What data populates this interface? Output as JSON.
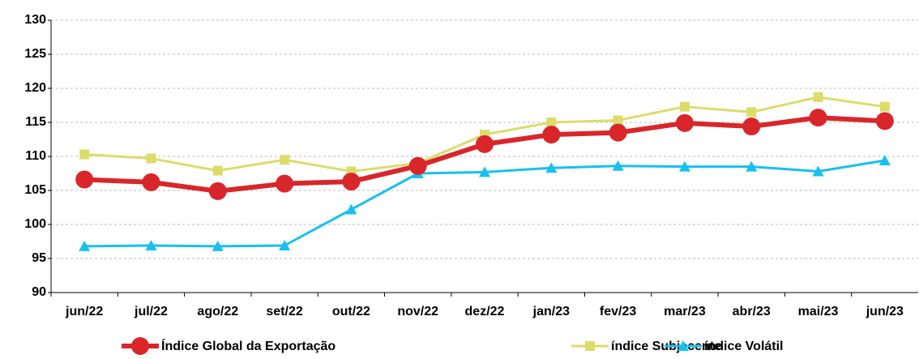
{
  "chart_data": {
    "type": "line",
    "categories": [
      "jun/22",
      "jul/22",
      "ago/22",
      "set/22",
      "out/22",
      "nov/22",
      "dez/22",
      "jan/23",
      "fev/23",
      "mar/23",
      "abr/23",
      "mai/23",
      "jun/23"
    ],
    "series": [
      {
        "name": "Índice Global da Exportação",
        "color": "#d9262b",
        "marker": "circle",
        "values": [
          106.6,
          106.2,
          104.9,
          106.0,
          106.3,
          108.6,
          111.8,
          113.2,
          113.5,
          114.9,
          114.4,
          115.7,
          115.2
        ]
      },
      {
        "name": "índice Subjacente",
        "color": "#dcdc6a",
        "marker": "square",
        "values": [
          110.3,
          109.7,
          107.9,
          109.5,
          107.8,
          109.0,
          113.2,
          115.0,
          115.3,
          117.3,
          116.5,
          118.7,
          117.3
        ]
      },
      {
        "name": "índice Volátil",
        "color": "#17c0ef",
        "marker": "triangle",
        "values": [
          96.8,
          96.9,
          96.8,
          96.9,
          102.2,
          107.5,
          107.7,
          108.3,
          108.6,
          108.5,
          108.5,
          107.8,
          109.4
        ]
      }
    ],
    "ylim": [
      90,
      130
    ],
    "yticks": [
      90,
      95,
      100,
      105,
      110,
      115,
      120,
      125,
      130
    ],
    "grid": true,
    "legend": "bottom"
  }
}
